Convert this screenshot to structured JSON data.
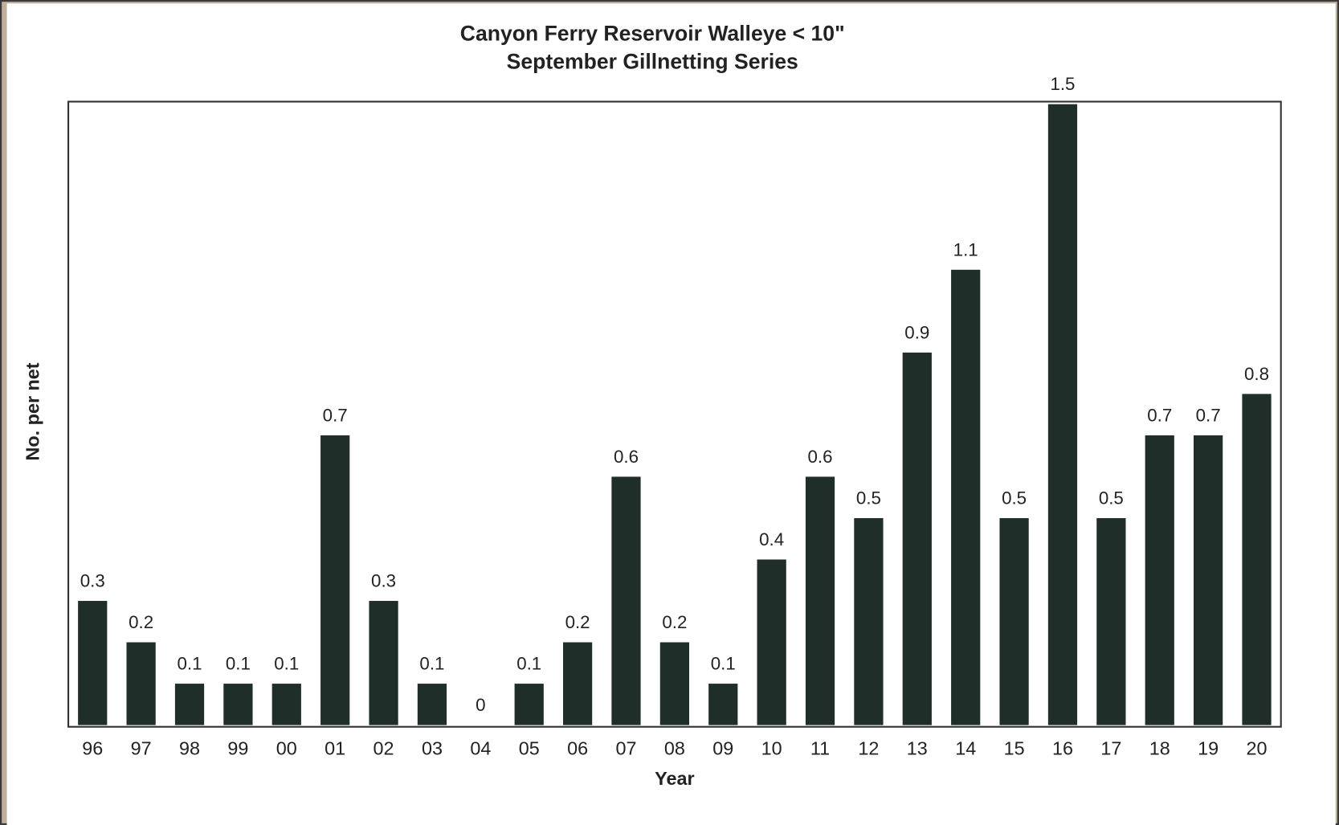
{
  "chart_data": {
    "type": "bar",
    "title": "Canyon Ferry Reservoir Walleye < 10\"",
    "subtitle": "September Gillnetting Series",
    "xlabel": "Year",
    "ylabel": "No. per net",
    "categories": [
      "96",
      "97",
      "98",
      "99",
      "00",
      "01",
      "02",
      "03",
      "04",
      "05",
      "06",
      "07",
      "08",
      "09",
      "10",
      "11",
      "12",
      "13",
      "14",
      "15",
      "16",
      "17",
      "18",
      "19",
      "20"
    ],
    "values": [
      0.3,
      0.2,
      0.1,
      0.1,
      0.1,
      0.7,
      0.3,
      0.1,
      0,
      0.1,
      0.2,
      0.6,
      0.2,
      0.1,
      0.4,
      0.6,
      0.5,
      0.9,
      1.1,
      0.5,
      1.5,
      0.5,
      0.7,
      0.7,
      0.8
    ],
    "color": "#1f2e28",
    "ylim": [
      0,
      1.5
    ]
  }
}
